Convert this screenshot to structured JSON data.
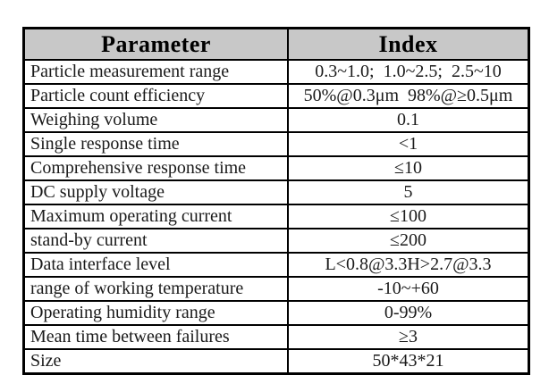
{
  "table": {
    "headers": {
      "parameter": "Parameter",
      "index": "Index"
    },
    "rows": [
      {
        "parameter": "Particle measurement range",
        "index": "0.3~1.0;  1.0~2.5;  2.5~10"
      },
      {
        "parameter": "Particle count efficiency",
        "index": "50%@0.3μm  98%@≥0.5μm"
      },
      {
        "parameter": "Weighing volume",
        "index": "0.1"
      },
      {
        "parameter": "Single response time",
        "index": "<1"
      },
      {
        "parameter": "Comprehensive response time",
        "index": "≤10"
      },
      {
        "parameter": "DC supply voltage",
        "index": "5"
      },
      {
        "parameter": "Maximum operating current",
        "index": "≤100"
      },
      {
        "parameter": "stand-by current",
        "index": "≤200"
      },
      {
        "parameter": "Data interface level",
        "index": "L<0.8@3.3H>2.7@3.3"
      },
      {
        "parameter": "range of working temperature",
        "index": "-10~+60"
      },
      {
        "parameter": "Operating humidity range",
        "index": "0-99%"
      },
      {
        "parameter": "Mean time between failures",
        "index": "≥3"
      },
      {
        "parameter": "Size",
        "index": "50*43*21"
      }
    ],
    "colors": {
      "header_bg": "#c8c8c8",
      "border": "#000000",
      "page_bg": "#ffffff"
    }
  }
}
